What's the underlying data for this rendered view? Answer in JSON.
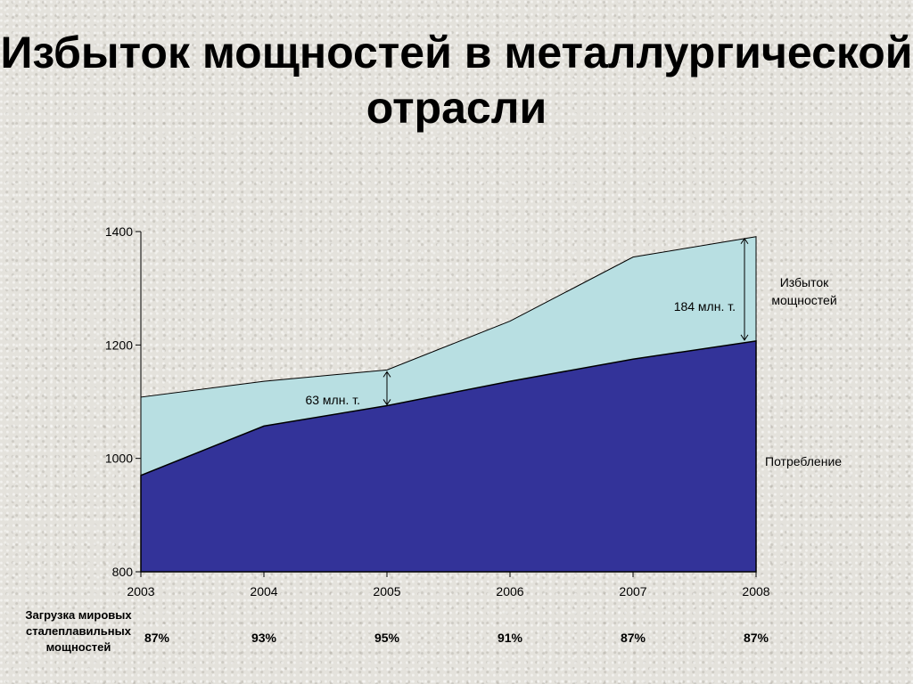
{
  "title": "Избыток мощностей в металлургической отрасли",
  "chart_data": {
    "type": "area",
    "x": [
      "2003",
      "2004",
      "2005",
      "2006",
      "2007",
      "2008"
    ],
    "ylim": [
      800,
      1400
    ],
    "yticks": [
      "800",
      "1000",
      "1200",
      "1400"
    ],
    "grid": false,
    "series": [
      {
        "name": "Потребление",
        "color": "#333399",
        "values": [
          970,
          1057,
          1093,
          1136,
          1175,
          1207
        ]
      },
      {
        "name": "Избыток мощностей",
        "color": "#b8dfe2",
        "values": [
          1108,
          1136,
          1156,
          1242,
          1355,
          1391
        ]
      }
    ],
    "annotations": [
      {
        "text": "63 млн. т.",
        "x": "2005"
      },
      {
        "text": "184 млн. т.",
        "x": "2008"
      }
    ],
    "load_caption": "Загрузка мировых сталеплавильных мощностей",
    "load_values": [
      "87%",
      "93%",
      "95%",
      "91%",
      "87%",
      "87%"
    ]
  }
}
